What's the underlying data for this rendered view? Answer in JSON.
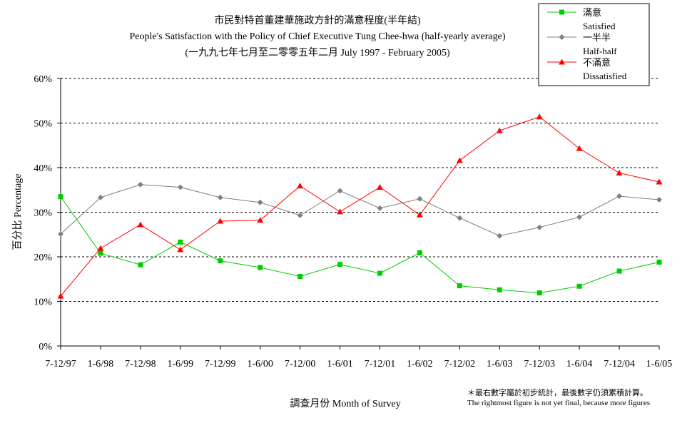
{
  "chart_data": {
    "type": "line",
    "title": "市民對特首董建華施政方針的滿意程度(半年結)",
    "subtitle": "People's Satisfaction with the Policy of Chief Executive Tung Chee-hwa (half-yearly average)",
    "subtitle2": "(一九九七年七月至二零零五年二月 July 1997 -  February 2005)",
    "xlabel": "調查月份 Month of Survey",
    "ylabel": "百分比 Percentage",
    "ylim": [
      0,
      60
    ],
    "yticks": [
      "0%",
      "10%",
      "20%",
      "30%",
      "40%",
      "50%",
      "60%"
    ],
    "grid": true,
    "legend_position": "top-right",
    "categories": [
      "7-12/97",
      "1-6/98",
      "7-12/98",
      "1-6/99",
      "7-12/99",
      "1-6/00",
      "7-12/00",
      "1-6/01",
      "7-12/01",
      "1-6/02",
      "7-12/02",
      "1-6/03",
      "7-12/03",
      "1-6/04",
      "7-12/04",
      "1-6/05"
    ],
    "series": [
      {
        "name": "滿意",
        "name_en": "Satisfied",
        "color": "#00cc00",
        "marker": "square",
        "values": [
          33.5,
          20.8,
          18.2,
          23.3,
          19.1,
          17.6,
          15.6,
          18.3,
          16.3,
          20.9,
          13.5,
          12.6,
          11.9,
          13.4,
          16.8,
          18.8
        ]
      },
      {
        "name": "一半半",
        "name_en": "Half-half",
        "color": "#808080",
        "marker": "diamond",
        "values": [
          25.1,
          33.3,
          36.2,
          35.6,
          33.3,
          32.2,
          29.3,
          34.8,
          30.9,
          33.0,
          28.7,
          24.7,
          26.6,
          28.9,
          33.6,
          32.8
        ]
      },
      {
        "name": "不滿意",
        "name_en": "Dissatisfied",
        "color": "#ff0000",
        "marker": "triangle",
        "values": [
          11.2,
          21.9,
          27.2,
          21.6,
          28.0,
          28.2,
          35.9,
          30.1,
          35.6,
          29.4,
          41.6,
          48.3,
          51.4,
          44.3,
          38.8,
          36.8
        ]
      }
    ]
  },
  "note": {
    "zh": "＊最右數字屬於初步統計，最後數字仍須累積計算。",
    "en": "The rightmost figure is not yet final, because more figures"
  }
}
